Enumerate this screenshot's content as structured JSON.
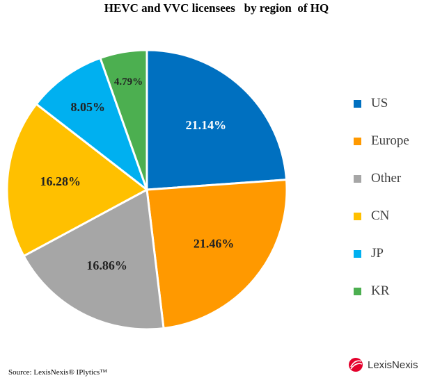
{
  "title": "HEVC and VVC licensees   by region  of HQ",
  "chart_data": {
    "type": "pie",
    "title": "HEVC and VVC licensees   by region  of HQ",
    "start_angle_deg": 0,
    "direction": "clockwise",
    "series": [
      {
        "name": "US",
        "value": 21.14,
        "label": "21.14%",
        "color": "#0070c0",
        "label_color": "#ffffff"
      },
      {
        "name": "Europe",
        "value": 21.46,
        "label": "21.46%",
        "color": "#ff9900",
        "label_color": "#222222"
      },
      {
        "name": "Other",
        "value": 16.86,
        "label": "16.86%",
        "color": "#a6a6a6",
        "label_color": "#222222"
      },
      {
        "name": "CN",
        "value": 16.28,
        "label": "16.28%",
        "color": "#ffc000",
        "label_color": "#222222"
      },
      {
        "name": "JP",
        "value": 8.05,
        "label": "8.05%",
        "color": "#00b0f0",
        "label_color": "#222222"
      },
      {
        "name": "KR",
        "value": 4.79,
        "label": "4.79%",
        "color": "#4caf50",
        "label_color": "#222222"
      }
    ],
    "legend_position": "right"
  },
  "source": "Source:  LexisNexis® IPlytics™",
  "logo": {
    "text": "LexisNexis",
    "color": "#e4002b"
  }
}
